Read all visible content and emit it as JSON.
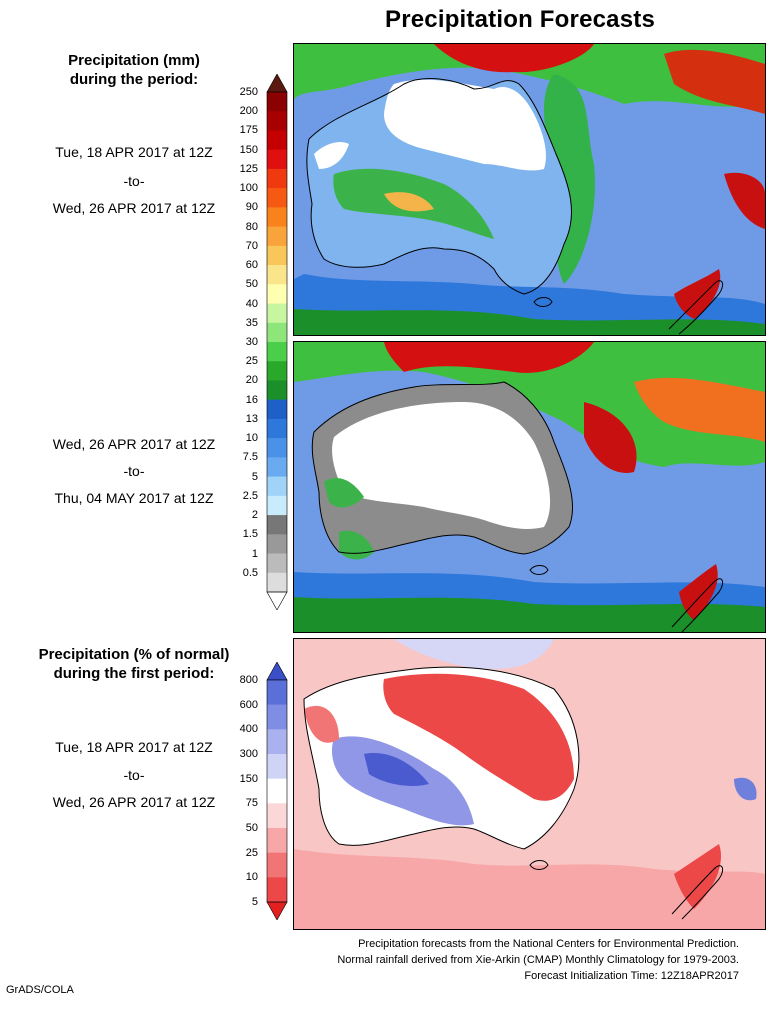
{
  "title": "Precipitation Forecasts",
  "left_labels": {
    "mm_title_line1": "Precipitation (mm)",
    "mm_title_line2": "during the period:",
    "period1": {
      "start": "Tue, 18 APR 2017 at 12Z",
      "sep": "-to-",
      "end": "Wed, 26 APR 2017 at 12Z"
    },
    "period2": {
      "start": "Wed, 26 APR 2017 at 12Z",
      "sep": "-to-",
      "end": "Thu, 04 MAY 2017 at 12Z"
    },
    "pct_title_line1": "Precipitation (% of normal)",
    "pct_title_line2": "during the first period:",
    "period3": {
      "start": "Tue, 18 APR 2017 at 12Z",
      "sep": "-to-",
      "end": "Wed, 26 APR 2017 at 12Z"
    }
  },
  "colorbar_mm": {
    "labels": [
      "250",
      "200",
      "175",
      "150",
      "125",
      "100",
      "90",
      "80",
      "70",
      "60",
      "50",
      "40",
      "35",
      "30",
      "25",
      "20",
      "16",
      "13",
      "10",
      "7.5",
      "5",
      "2.5",
      "2",
      "1.5",
      "1",
      "0.5"
    ],
    "colors": [
      "#5a1a10",
      "#8b0000",
      "#a80000",
      "#c40000",
      "#e01010",
      "#ef3a10",
      "#f65a12",
      "#f9821c",
      "#f9a43a",
      "#f9c65a",
      "#fbe58a",
      "#ffffb2",
      "#c8f5a0",
      "#8ee57a",
      "#4bcf4b",
      "#2aa82a",
      "#1a8f2a",
      "#1f5fc8",
      "#2e78dc",
      "#4a92e8",
      "#6aaaf0",
      "#9fd4f8",
      "#c9ecfc",
      "#777777",
      "#999999",
      "#bbbbbb",
      "#dddddd",
      "#ffffff"
    ]
  },
  "colorbar_pct": {
    "labels": [
      "800",
      "600",
      "400",
      "300",
      "150",
      "75",
      "50",
      "25",
      "10",
      "5"
    ],
    "colors": [
      "#3a4ec8",
      "#5a6fd8",
      "#7f8ee4",
      "#a9b1ee",
      "#cfd3f6",
      "#ffffff",
      "#fcd7d7",
      "#f7a7a7",
      "#f27575",
      "#ec4848",
      "#e22020"
    ]
  },
  "footer": {
    "line1": "Precipitation forecasts from the National Centers for Environmental Prediction.",
    "line2": "Normal rainfall derived from Xie-Arkin (CMAP) Monthly Climatology for 1979-2003.",
    "line3": "Forecast Initialization Time: 12Z18APR2017"
  },
  "credit": "GrADS/COLA"
}
